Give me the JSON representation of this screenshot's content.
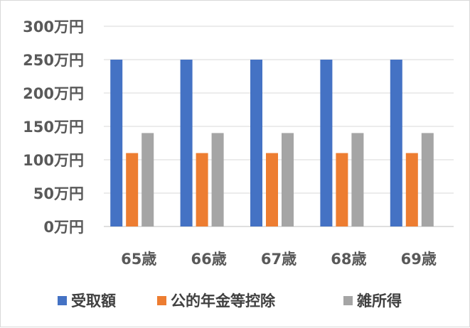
{
  "chart_data": {
    "type": "bar",
    "categories": [
      "65歳",
      "66歳",
      "67歳",
      "68歳",
      "69歳"
    ],
    "series": [
      {
        "name": "受取額",
        "values": [
          250,
          250,
          250,
          250,
          250
        ],
        "color": "#4472c4"
      },
      {
        "name": "公的年金等控除",
        "values": [
          110,
          110,
          110,
          110,
          110
        ],
        "color": "#ed7d31"
      },
      {
        "name": "雑所得",
        "values": [
          140,
          140,
          140,
          140,
          140
        ],
        "color": "#a5a5a5"
      }
    ],
    "ylim": [
      0,
      300
    ],
    "yticks": [
      0,
      50,
      100,
      150,
      200,
      250,
      300
    ],
    "ytick_labels": [
      "0万円",
      "50万円",
      "100万円",
      "150万円",
      "200万円",
      "250万円",
      "300万円"
    ],
    "grid": true,
    "legend": "bottom",
    "title": "",
    "xlabel": "",
    "ylabel": ""
  }
}
